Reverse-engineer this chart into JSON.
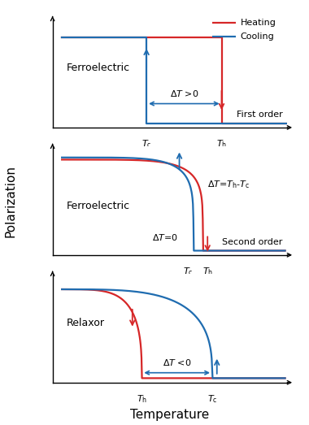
{
  "heating_color": "#d62728",
  "cooling_color": "#1f6cb0",
  "background_color": "#ffffff",
  "ylabel": "Polarization",
  "xlabel": "Temperature",
  "panel1_label": "Ferroelectric",
  "panel2_label": "Ferroelectric",
  "panel3_label": "Relaxor",
  "panel1_order": "First order",
  "panel2_order": "Second order",
  "legend_heating": "Heating",
  "legend_cooling": "Cooling",
  "panel1_Tc": 0.4,
  "panel1_Th": 0.72,
  "panel1_p_high": 0.83,
  "panel1_p_low": 0.04,
  "panel2_Tc": 0.6,
  "panel2_Th": 0.64,
  "panel3_Th": 0.38,
  "panel3_Tc": 0.68
}
